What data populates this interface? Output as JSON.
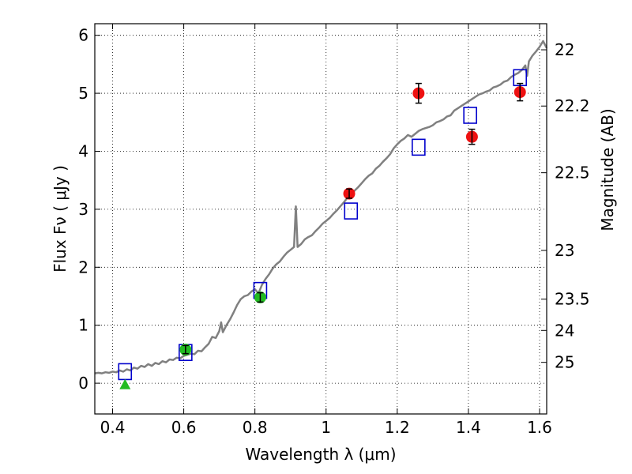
{
  "chart_data": {
    "type": "scatter",
    "xlabel": "Wavelength  λ (μm)",
    "ylabel": "Flux  Fν  ( μJy )",
    "y2label": "Magnitude (AB)",
    "xlim": [
      0.35,
      1.62
    ],
    "ylim": [
      -0.53,
      6.2
    ],
    "grid": true,
    "x_ticks": [
      0.4,
      0.6,
      0.8,
      1.0,
      1.2,
      1.4,
      1.6
    ],
    "x_tick_labels": [
      "0.4",
      "0.6",
      "0.8",
      "1",
      "1.2",
      "1.4",
      "1.6"
    ],
    "y_ticks": [
      0,
      1,
      2,
      3,
      4,
      5,
      6
    ],
    "y_tick_labels": [
      "0",
      "1",
      "2",
      "3",
      "4",
      "5",
      "6"
    ],
    "y2_ticks": [
      {
        "label": "22",
        "flux": 5.75
      },
      {
        "label": "22.2",
        "flux": 4.78
      },
      {
        "label": "22.5",
        "flux": 3.63
      },
      {
        "label": "23",
        "flux": 2.29
      },
      {
        "label": "23.5",
        "flux": 1.45
      },
      {
        "label": "24",
        "flux": 0.91
      },
      {
        "label": "25",
        "flux": 0.36
      }
    ],
    "series": [
      {
        "marker": "line",
        "color": "#808080",
        "points": [
          [
            0.35,
            0.17
          ],
          [
            0.36,
            0.18
          ],
          [
            0.37,
            0.17
          ],
          [
            0.38,
            0.19
          ],
          [
            0.39,
            0.18
          ],
          [
            0.4,
            0.2
          ],
          [
            0.41,
            0.19
          ],
          [
            0.42,
            0.22
          ],
          [
            0.43,
            0.2
          ],
          [
            0.44,
            0.24
          ],
          [
            0.45,
            0.22
          ],
          [
            0.46,
            0.27
          ],
          [
            0.47,
            0.25
          ],
          [
            0.48,
            0.3
          ],
          [
            0.49,
            0.28
          ],
          [
            0.5,
            0.33
          ],
          [
            0.51,
            0.3
          ],
          [
            0.52,
            0.35
          ],
          [
            0.53,
            0.33
          ],
          [
            0.54,
            0.38
          ],
          [
            0.55,
            0.36
          ],
          [
            0.56,
            0.41
          ],
          [
            0.57,
            0.4
          ],
          [
            0.58,
            0.44
          ],
          [
            0.59,
            0.43
          ],
          [
            0.6,
            0.47
          ],
          [
            0.61,
            0.49
          ],
          [
            0.62,
            0.51
          ],
          [
            0.63,
            0.5
          ],
          [
            0.64,
            0.56
          ],
          [
            0.65,
            0.55
          ],
          [
            0.66,
            0.62
          ],
          [
            0.67,
            0.68
          ],
          [
            0.68,
            0.8
          ],
          [
            0.69,
            0.78
          ],
          [
            0.7,
            0.9
          ],
          [
            0.705,
            1.05
          ],
          [
            0.71,
            0.88
          ],
          [
            0.72,
            1.0
          ],
          [
            0.73,
            1.1
          ],
          [
            0.74,
            1.22
          ],
          [
            0.75,
            1.35
          ],
          [
            0.76,
            1.45
          ],
          [
            0.77,
            1.5
          ],
          [
            0.78,
            1.52
          ],
          [
            0.79,
            1.58
          ],
          [
            0.8,
            1.62
          ],
          [
            0.81,
            1.55
          ],
          [
            0.82,
            1.7
          ],
          [
            0.83,
            1.8
          ],
          [
            0.84,
            1.88
          ],
          [
            0.85,
            1.98
          ],
          [
            0.86,
            2.05
          ],
          [
            0.87,
            2.1
          ],
          [
            0.88,
            2.18
          ],
          [
            0.89,
            2.25
          ],
          [
            0.9,
            2.3
          ],
          [
            0.91,
            2.35
          ],
          [
            0.915,
            3.05
          ],
          [
            0.92,
            2.35
          ],
          [
            0.93,
            2.4
          ],
          [
            0.94,
            2.48
          ],
          [
            0.95,
            2.52
          ],
          [
            0.96,
            2.55
          ],
          [
            0.97,
            2.62
          ],
          [
            0.98,
            2.68
          ],
          [
            0.99,
            2.75
          ],
          [
            1.0,
            2.8
          ],
          [
            1.01,
            2.85
          ],
          [
            1.02,
            2.92
          ],
          [
            1.03,
            2.98
          ],
          [
            1.04,
            3.05
          ],
          [
            1.05,
            3.12
          ],
          [
            1.06,
            3.2
          ],
          [
            1.07,
            3.25
          ],
          [
            1.08,
            3.32
          ],
          [
            1.09,
            3.38
          ],
          [
            1.1,
            3.45
          ],
          [
            1.11,
            3.52
          ],
          [
            1.12,
            3.58
          ],
          [
            1.13,
            3.62
          ],
          [
            1.14,
            3.7
          ],
          [
            1.15,
            3.75
          ],
          [
            1.16,
            3.82
          ],
          [
            1.17,
            3.88
          ],
          [
            1.18,
            3.95
          ],
          [
            1.19,
            4.05
          ],
          [
            1.2,
            4.12
          ],
          [
            1.21,
            4.18
          ],
          [
            1.22,
            4.22
          ],
          [
            1.23,
            4.28
          ],
          [
            1.24,
            4.25
          ],
          [
            1.25,
            4.3
          ],
          [
            1.26,
            4.35
          ],
          [
            1.27,
            4.38
          ],
          [
            1.28,
            4.4
          ],
          [
            1.29,
            4.42
          ],
          [
            1.3,
            4.45
          ],
          [
            1.31,
            4.5
          ],
          [
            1.32,
            4.52
          ],
          [
            1.33,
            4.55
          ],
          [
            1.34,
            4.6
          ],
          [
            1.35,
            4.62
          ],
          [
            1.36,
            4.7
          ],
          [
            1.37,
            4.74
          ],
          [
            1.38,
            4.78
          ],
          [
            1.39,
            4.82
          ],
          [
            1.4,
            4.86
          ],
          [
            1.41,
            4.9
          ],
          [
            1.42,
            4.94
          ],
          [
            1.43,
            4.98
          ],
          [
            1.44,
            5.0
          ],
          [
            1.45,
            5.03
          ],
          [
            1.46,
            5.05
          ],
          [
            1.47,
            5.1
          ],
          [
            1.48,
            5.12
          ],
          [
            1.49,
            5.15
          ],
          [
            1.5,
            5.2
          ],
          [
            1.51,
            5.22
          ],
          [
            1.52,
            5.28
          ],
          [
            1.53,
            5.32
          ],
          [
            1.54,
            5.35
          ],
          [
            1.55,
            5.4
          ],
          [
            1.56,
            5.48
          ],
          [
            1.565,
            5.3
          ],
          [
            1.57,
            5.55
          ],
          [
            1.58,
            5.65
          ],
          [
            1.59,
            5.72
          ],
          [
            1.6,
            5.8
          ],
          [
            1.61,
            5.9
          ],
          [
            1.62,
            5.78
          ]
        ]
      },
      {
        "marker": "open-square",
        "color": "#0000cc",
        "points": [
          [
            0.435,
            0.2
          ],
          [
            0.605,
            0.53
          ],
          [
            0.815,
            1.6
          ],
          [
            1.07,
            2.97
          ],
          [
            1.26,
            4.07
          ],
          [
            1.405,
            4.62
          ],
          [
            1.545,
            5.27
          ]
        ]
      },
      {
        "marker": "filled-circle",
        "color": "#ee1111",
        "points": [
          [
            1.065,
            3.27,
            0.08
          ],
          [
            1.26,
            5.0,
            0.17
          ],
          [
            1.41,
            4.25,
            0.13
          ],
          [
            1.545,
            5.02,
            0.15
          ]
        ]
      },
      {
        "marker": "filled-circle",
        "color": "#22bb22",
        "points": [
          [
            0.605,
            0.58,
            0.07
          ],
          [
            0.815,
            1.48,
            0.08
          ]
        ]
      },
      {
        "marker": "triangle-up",
        "color": "#22bb22",
        "points": [
          [
            0.435,
            -0.02
          ]
        ]
      }
    ]
  }
}
